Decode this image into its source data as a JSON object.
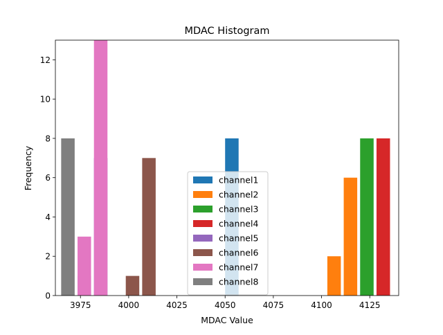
{
  "chart_data": {
    "type": "bar",
    "title": "MDAC Histogram",
    "xlabel": "MDAC Value",
    "ylabel": "Frequency",
    "xlim": [
      3962,
      4140
    ],
    "ylim": [
      0,
      13
    ],
    "x_ticks": [
      3975,
      4000,
      4025,
      4050,
      4075,
      4100,
      4125
    ],
    "y_ticks": [
      0,
      2,
      4,
      6,
      8,
      10,
      12
    ],
    "bar_width": 7,
    "grid": false,
    "legend_position": "lower center",
    "series": [
      {
        "name": "channel1",
        "color": "#1f77b4",
        "bars": [
          {
            "x": 4053.5,
            "value": 8
          }
        ]
      },
      {
        "name": "channel2",
        "color": "#ff7f0e",
        "bars": [
          {
            "x": 4106.5,
            "value": 2
          },
          {
            "x": 4115,
            "value": 6
          }
        ]
      },
      {
        "name": "channel3",
        "color": "#2ca02c",
        "bars": [
          {
            "x": 4123.5,
            "value": 8
          }
        ]
      },
      {
        "name": "channel4",
        "color": "#d62728",
        "bars": [
          {
            "x": 4132,
            "value": 8
          }
        ]
      },
      {
        "name": "channel5",
        "color": "#9467bd",
        "bars": [
          {
            "x": 3977,
            "value": 1
          },
          {
            "x": 3985.5,
            "value": 7
          }
        ]
      },
      {
        "name": "channel6",
        "color": "#8c564b",
        "bars": [
          {
            "x": 4002,
            "value": 1
          },
          {
            "x": 4010.5,
            "value": 7
          }
        ]
      },
      {
        "name": "channel7",
        "color": "#e377c2",
        "bars": [
          {
            "x": 3977,
            "value": 3
          },
          {
            "x": 3985.5,
            "value": 13
          }
        ]
      },
      {
        "name": "channel8",
        "color": "#7f7f7f",
        "bars": [
          {
            "x": 3968.5,
            "value": 8
          }
        ]
      }
    ]
  }
}
